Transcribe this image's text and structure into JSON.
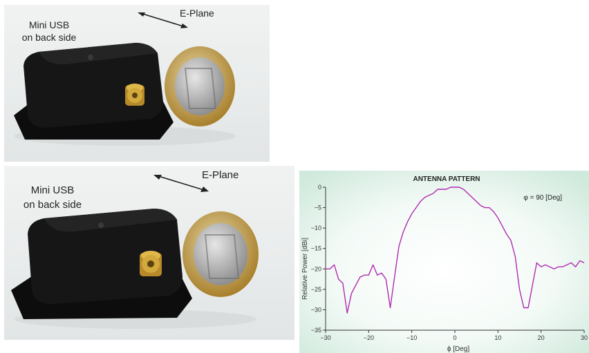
{
  "photos": [
    {
      "usb_label_line1": "Mini USB",
      "usb_label_line2": "on back side",
      "plane_label": "E-Plane"
    },
    {
      "usb_label_line1": "Mini USB",
      "usb_label_line2": "on back side",
      "plane_label": "E-Plane"
    }
  ],
  "colors": {
    "curve": "#b02ab0",
    "chart_bg_center": "#ffffff",
    "chart_bg_edge": "#cfe9dc",
    "enclosure": "#161616",
    "sma": "#c79a2a",
    "coin": "#c9a34b"
  },
  "chart_data": {
    "type": "line",
    "title": "ANTENNA PATTERN",
    "annotation": "φ = 90 [Deg]",
    "xlabel": "ϕ [Deg]",
    "ylabel": "Relative Power [dBi]",
    "xlim": [
      -30,
      30
    ],
    "ylim": [
      -35,
      0
    ],
    "xticks": [
      -30,
      -20,
      -10,
      0,
      10,
      20,
      30
    ],
    "yticks": [
      0,
      -5,
      -10,
      -15,
      -20,
      -25,
      -30,
      -35
    ],
    "grid": false,
    "series": [
      {
        "x": [
          -30,
          -29,
          -28,
          -27,
          -26,
          -25,
          -24,
          -23,
          -22,
          -21,
          -20,
          -19,
          -18,
          -17,
          -16,
          -15,
          -14,
          -13,
          -12,
          -11,
          -10,
          -9,
          -8,
          -7,
          -6,
          -5,
          -4,
          -3,
          -2,
          -1,
          0,
          1,
          2,
          3,
          4,
          5,
          6,
          7,
          8,
          9,
          10,
          11,
          12,
          13,
          14,
          15,
          16,
          17,
          18,
          19,
          20,
          21,
          22,
          23,
          24,
          25,
          26,
          27,
          28,
          29,
          30
        ],
        "y": [
          -20,
          -20,
          -19,
          -22.5,
          -23.5,
          -30.8,
          -26,
          -24,
          -22,
          -21.5,
          -21.5,
          -19,
          -21.5,
          -21,
          -22.5,
          -29.5,
          -22,
          -14.5,
          -11,
          -8.5,
          -6.5,
          -5,
          -3.5,
          -2.5,
          -2,
          -1.5,
          -0.5,
          -0.5,
          -0.5,
          0,
          0,
          0,
          -0.5,
          -1.5,
          -2.5,
          -3.5,
          -4.5,
          -5,
          -5,
          -6,
          -7.5,
          -9.5,
          -11.5,
          -13,
          -17,
          -25,
          -29.5,
          -29.5,
          -24,
          -18.5,
          -19.5,
          -19,
          -19.5,
          -20,
          -19.5,
          -19.5,
          -19,
          -18.5,
          -19.5,
          -18,
          -18.5
        ]
      }
    ]
  }
}
